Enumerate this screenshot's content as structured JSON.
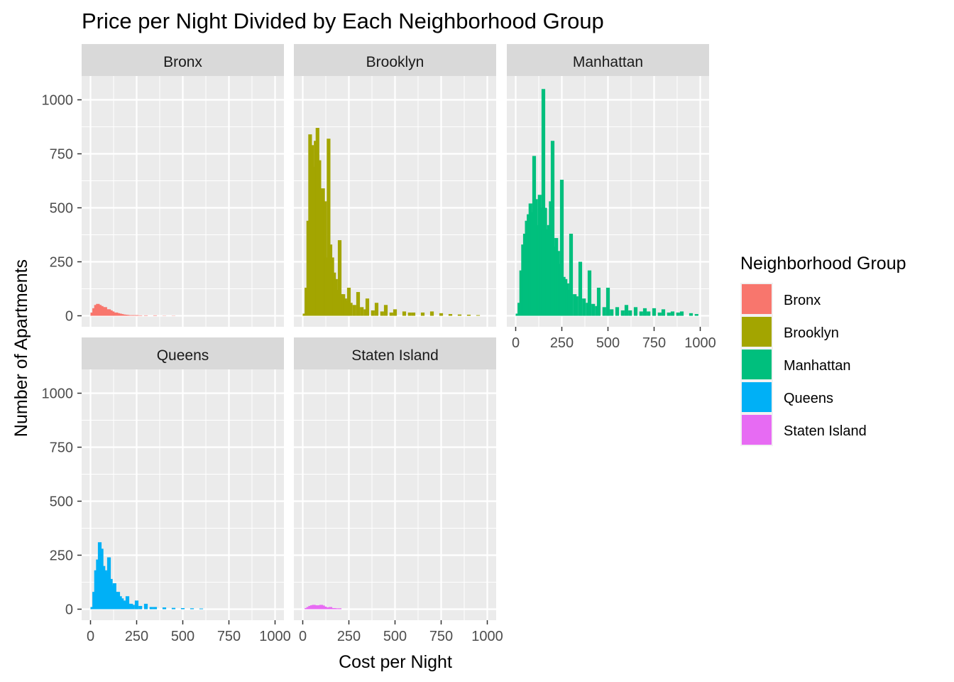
{
  "chart_data": {
    "type": "bar",
    "title": "Price per Night Divided by Each Neighborhood Group",
    "xlabel": "Cost per Night",
    "ylabel": "Number of Apartments",
    "xlim": [
      0,
      1000
    ],
    "ylim": [
      0,
      1000
    ],
    "x_ticks": [
      "0",
      "250",
      "500",
      "750",
      "1000"
    ],
    "y_ticks": [
      "0",
      "250",
      "500",
      "750",
      "1000"
    ],
    "bin_width": 20,
    "grid": true,
    "legend": {
      "title": "Neighborhood Group",
      "position": "right",
      "entries": [
        "Bronx",
        "Brooklyn",
        "Manhattan",
        "Queens",
        "Staten Island"
      ]
    },
    "colors": {
      "Bronx": "#F8766D",
      "Brooklyn": "#A3A500",
      "Manhattan": "#00BF7D",
      "Queens": "#00B0F6",
      "Staten Island": "#E76BF3"
    },
    "facets": [
      {
        "name": "Bronx",
        "bins": [
          [
            10,
            15
          ],
          [
            20,
            35
          ],
          [
            30,
            50
          ],
          [
            40,
            55
          ],
          [
            50,
            50
          ],
          [
            60,
            45
          ],
          [
            70,
            40
          ],
          [
            80,
            40
          ],
          [
            90,
            30
          ],
          [
            100,
            30
          ],
          [
            110,
            25
          ],
          [
            120,
            20
          ],
          [
            130,
            15
          ],
          [
            140,
            15
          ],
          [
            150,
            12
          ],
          [
            160,
            10
          ],
          [
            170,
            8
          ],
          [
            180,
            6
          ],
          [
            190,
            5
          ],
          [
            200,
            4
          ],
          [
            210,
            3
          ],
          [
            230,
            3
          ],
          [
            250,
            3
          ],
          [
            270,
            2
          ],
          [
            300,
            2
          ],
          [
            350,
            2
          ],
          [
            400,
            1
          ],
          [
            450,
            1
          ]
        ]
      },
      {
        "name": "Brooklyn",
        "bins": [
          [
            10,
            10
          ],
          [
            20,
            130
          ],
          [
            30,
            440
          ],
          [
            40,
            840
          ],
          [
            50,
            790
          ],
          [
            60,
            690
          ],
          [
            70,
            810
          ],
          [
            80,
            870
          ],
          [
            90,
            720
          ],
          [
            100,
            490
          ],
          [
            110,
            590
          ],
          [
            120,
            530
          ],
          [
            130,
            270
          ],
          [
            140,
            820
          ],
          [
            150,
            330
          ],
          [
            160,
            270
          ],
          [
            170,
            200
          ],
          [
            180,
            170
          ],
          [
            190,
            120
          ],
          [
            200,
            350
          ],
          [
            210,
            100
          ],
          [
            220,
            100
          ],
          [
            230,
            80
          ],
          [
            240,
            70
          ],
          [
            250,
            130
          ],
          [
            260,
            60
          ],
          [
            280,
            50
          ],
          [
            300,
            110
          ],
          [
            320,
            40
          ],
          [
            340,
            30
          ],
          [
            350,
            80
          ],
          [
            380,
            25
          ],
          [
            400,
            60
          ],
          [
            430,
            20
          ],
          [
            450,
            50
          ],
          [
            480,
            15
          ],
          [
            500,
            30
          ],
          [
            550,
            20
          ],
          [
            580,
            15
          ],
          [
            600,
            15
          ],
          [
            650,
            15
          ],
          [
            700,
            20
          ],
          [
            750,
            12
          ],
          [
            800,
            8
          ],
          [
            850,
            6
          ],
          [
            900,
            5
          ],
          [
            950,
            3
          ]
        ]
      },
      {
        "name": "Manhattan",
        "bins": [
          [
            10,
            10
          ],
          [
            20,
            60
          ],
          [
            30,
            210
          ],
          [
            40,
            330
          ],
          [
            50,
            380
          ],
          [
            60,
            440
          ],
          [
            70,
            470
          ],
          [
            80,
            520
          ],
          [
            90,
            480
          ],
          [
            100,
            740
          ],
          [
            110,
            540
          ],
          [
            120,
            420
          ],
          [
            130,
            560
          ],
          [
            140,
            500
          ],
          [
            150,
            1050
          ],
          [
            160,
            500
          ],
          [
            170,
            400
          ],
          [
            180,
            420
          ],
          [
            190,
            530
          ],
          [
            200,
            810
          ],
          [
            210,
            320
          ],
          [
            220,
            360
          ],
          [
            230,
            300
          ],
          [
            240,
            240
          ],
          [
            250,
            630
          ],
          [
            260,
            180
          ],
          [
            270,
            170
          ],
          [
            280,
            150
          ],
          [
            290,
            120
          ],
          [
            300,
            380
          ],
          [
            320,
            100
          ],
          [
            330,
            90
          ],
          [
            350,
            250
          ],
          [
            370,
            80
          ],
          [
            390,
            60
          ],
          [
            400,
            210
          ],
          [
            420,
            55
          ],
          [
            440,
            45
          ],
          [
            450,
            130
          ],
          [
            480,
            40
          ],
          [
            500,
            130
          ],
          [
            520,
            30
          ],
          [
            550,
            40
          ],
          [
            580,
            25
          ],
          [
            600,
            50
          ],
          [
            620,
            25
          ],
          [
            650,
            40
          ],
          [
            680,
            20
          ],
          [
            700,
            35
          ],
          [
            720,
            20
          ],
          [
            750,
            35
          ],
          [
            780,
            15
          ],
          [
            800,
            30
          ],
          [
            830,
            15
          ],
          [
            850,
            20
          ],
          [
            880,
            15
          ],
          [
            900,
            20
          ],
          [
            950,
            12
          ],
          [
            980,
            8
          ]
        ]
      },
      {
        "name": "Queens",
        "bins": [
          [
            10,
            10
          ],
          [
            20,
            80
          ],
          [
            30,
            180
          ],
          [
            40,
            230
          ],
          [
            50,
            310
          ],
          [
            60,
            280
          ],
          [
            70,
            200
          ],
          [
            80,
            180
          ],
          [
            90,
            170
          ],
          [
            100,
            240
          ],
          [
            110,
            140
          ],
          [
            120,
            110
          ],
          [
            130,
            120
          ],
          [
            140,
            80
          ],
          [
            150,
            80
          ],
          [
            160,
            60
          ],
          [
            170,
            50
          ],
          [
            180,
            40
          ],
          [
            190,
            35
          ],
          [
            200,
            60
          ],
          [
            210,
            25
          ],
          [
            220,
            25
          ],
          [
            230,
            20
          ],
          [
            250,
            40
          ],
          [
            270,
            15
          ],
          [
            300,
            25
          ],
          [
            330,
            10
          ],
          [
            350,
            10
          ],
          [
            400,
            8
          ],
          [
            450,
            6
          ],
          [
            500,
            5
          ],
          [
            550,
            4
          ],
          [
            600,
            3
          ]
        ]
      },
      {
        "name": "Staten Island",
        "bins": [
          [
            20,
            5
          ],
          [
            30,
            10
          ],
          [
            40,
            15
          ],
          [
            50,
            18
          ],
          [
            60,
            20
          ],
          [
            70,
            18
          ],
          [
            80,
            17
          ],
          [
            90,
            18
          ],
          [
            100,
            20
          ],
          [
            110,
            17
          ],
          [
            120,
            12
          ],
          [
            130,
            8
          ],
          [
            140,
            8
          ],
          [
            150,
            10
          ],
          [
            160,
            5
          ],
          [
            170,
            5
          ],
          [
            180,
            4
          ],
          [
            200,
            4
          ]
        ]
      }
    ]
  }
}
